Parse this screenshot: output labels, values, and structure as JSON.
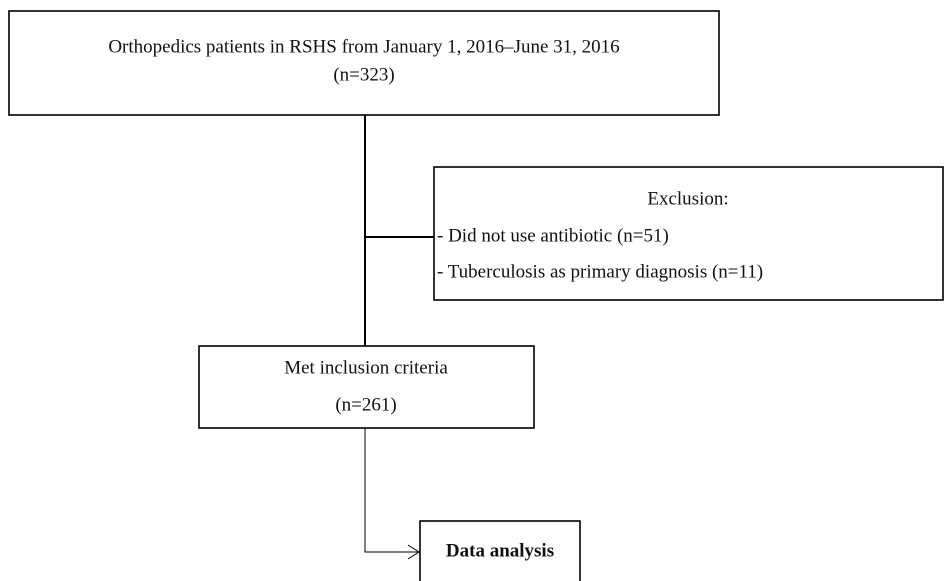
{
  "nodes": [
    {
      "lines": [
        "Orthopedics patients in RSHS from January 1, 2016–June 31, 2016",
        "(n=323)"
      ]
    },
    {
      "lines": [
        "Exclusion:",
        "- Did not use antibiotic (n=51)",
        "- Tuberculosis as primary diagnosis (n=11)"
      ]
    },
    {
      "lines": [
        "Met inclusion criteria",
        "(n=261)"
      ]
    },
    {
      "lines": [
        "Data analysis"
      ]
    }
  ]
}
